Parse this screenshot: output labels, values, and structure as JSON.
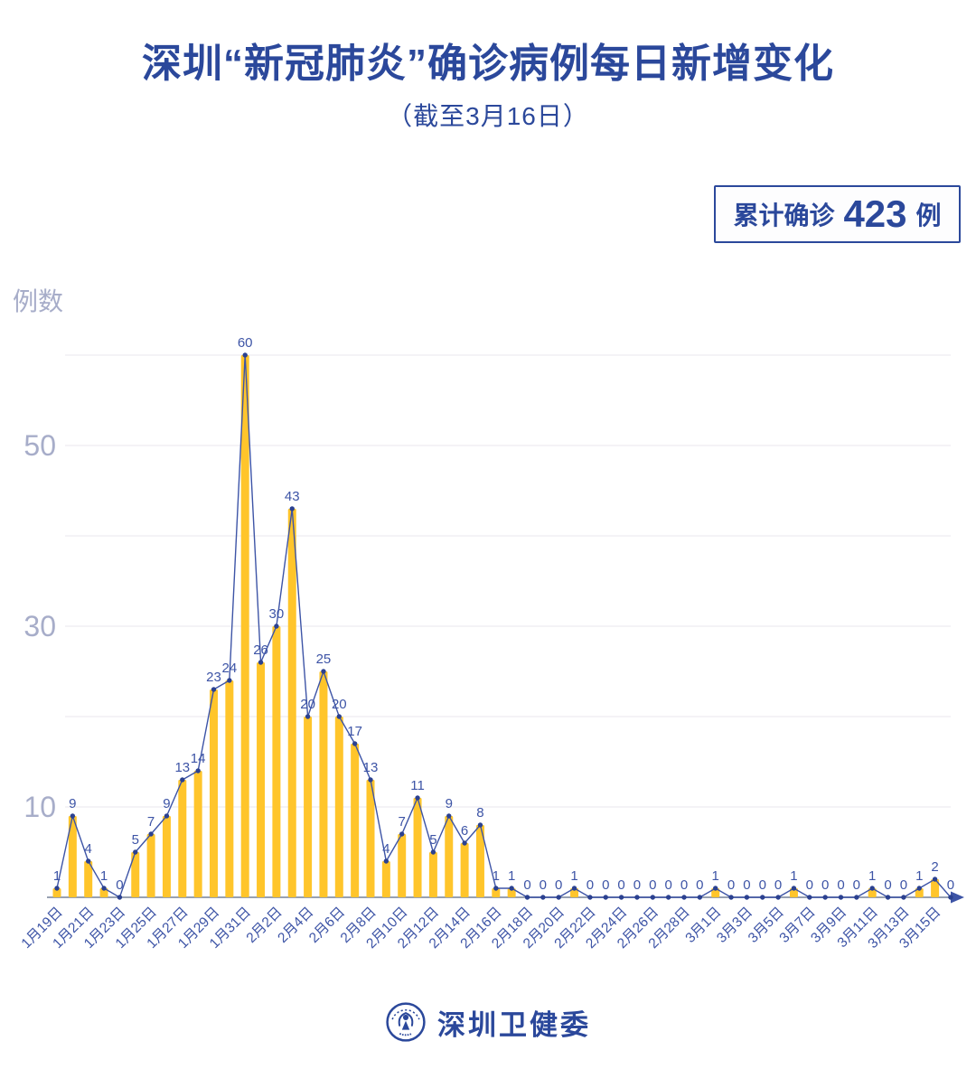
{
  "page_background": "#FFFFFF",
  "header": {
    "title": "深圳“新冠肺炎”确诊病例每日新增变化",
    "subtitle": "（截至3月16日）"
  },
  "summary_badge": {
    "prefix": "累计确诊",
    "value": "423",
    "suffix": "例"
  },
  "footer": {
    "source_name": "深圳卫健委",
    "logo": "shenzhen-health-commission-emblem"
  },
  "chart_data": {
    "type": "bar+line",
    "title": "深圳“新冠肺炎”确诊病例每日新增变化",
    "subtitle": "（截至3月16日）",
    "xlabel": "",
    "ylabel": "例数",
    "cumulative_total": 423,
    "values": [
      1,
      9,
      4,
      1,
      0,
      5,
      7,
      9,
      13,
      14,
      23,
      24,
      60,
      26,
      30,
      43,
      20,
      25,
      20,
      17,
      13,
      4,
      7,
      11,
      5,
      9,
      6,
      8,
      1,
      1,
      0,
      0,
      0,
      1,
      0,
      0,
      0,
      0,
      0,
      0,
      0,
      0,
      1,
      0,
      0,
      0,
      0,
      1,
      0,
      0,
      0,
      0,
      1,
      0,
      0,
      1,
      2,
      0
    ],
    "point_labels_visible": true,
    "x_tick_labels": [
      "1月19日",
      "1月21日",
      "1月23日",
      "1月25日",
      "1月27日",
      "1月29日",
      "1月31日",
      "2月2日",
      "2月4日",
      "2月6日",
      "2月8日",
      "2月10日",
      "2月12日",
      "2月14日",
      "2月16日",
      "2月18日",
      "2月20日",
      "2月22日",
      "2月24日",
      "2月26日",
      "2月28日",
      "3月1日",
      "3月3日",
      "3月5日",
      "3月7日",
      "3月9日",
      "3月11日",
      "3月13日",
      "3月15日"
    ],
    "x_tick_every": 2,
    "ylim": [
      0,
      62
    ],
    "y_gridlines": [
      10,
      20,
      30,
      40,
      50,
      60
    ],
    "y_ticks_labeled": [
      10,
      30,
      50
    ],
    "grid": true,
    "legend": "none",
    "x_axis_arrow": true,
    "colors": {
      "accent": "#2B489B",
      "bar": "#FFC52B",
      "line": "#3D54A6",
      "point": "#2B4190",
      "value_label": "#3D54A6",
      "x_tick_label": "#3D54A6",
      "y_tick_label": "#A7ADC9",
      "ylabel": "#A7ADC9",
      "gridline": "#E8E7ED",
      "axis": "#98A1B2"
    }
  }
}
